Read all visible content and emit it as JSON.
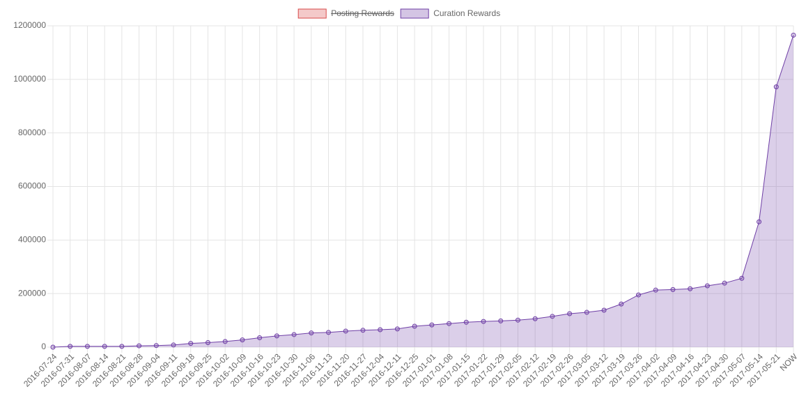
{
  "chart_data": {
    "type": "line",
    "categories": [
      "2016-07-24",
      "2016-07-31",
      "2016-08-07",
      "2016-08-14",
      "2016-08-21",
      "2016-08-28",
      "2016-09-04",
      "2016-09-11",
      "2016-09-18",
      "2016-09-25",
      "2016-10-02",
      "2016-10-09",
      "2016-10-16",
      "2016-10-23",
      "2016-10-30",
      "2016-11-06",
      "2016-11-13",
      "2016-11-20",
      "2016-11-27",
      "2016-12-04",
      "2016-12-11",
      "2016-12-25",
      "2017-01-01",
      "2017-01-08",
      "2017-01-15",
      "2017-01-22",
      "2017-01-29",
      "2017-02-05",
      "2017-02-12",
      "2017-02-19",
      "2017-02-26",
      "2017-03-05",
      "2017-03-12",
      "2017-03-19",
      "2017-03-26",
      "2017-04-02",
      "2017-04-09",
      "2017-04-16",
      "2017-04-23",
      "2017-04-30",
      "2017-05-07",
      "2017-05-14",
      "2017-05-21",
      "NOW"
    ],
    "series": [
      {
        "name": "Posting Rewards",
        "color": "#d94b4b",
        "hidden": true,
        "values": [
          null,
          null,
          null,
          null,
          null,
          null,
          null,
          null,
          null,
          null,
          null,
          null,
          null,
          null,
          null,
          null,
          null,
          null,
          null,
          null,
          null,
          null,
          null,
          null,
          null,
          null,
          null,
          null,
          null,
          null,
          null,
          null,
          null,
          null,
          null,
          null,
          null,
          null,
          null,
          null,
          null,
          null,
          null,
          null
        ]
      },
      {
        "name": "Curation Rewards",
        "color": "#6f3fa6",
        "hidden": false,
        "values": [
          0,
          3000,
          3000,
          3000,
          3000,
          5000,
          6000,
          8000,
          14000,
          17000,
          21000,
          27000,
          35000,
          42000,
          47000,
          53000,
          55000,
          60000,
          63000,
          65000,
          68000,
          78000,
          83000,
          88000,
          93000,
          96000,
          98000,
          101000,
          106000,
          115000,
          125000,
          130000,
          138000,
          161000,
          195000,
          213000,
          215000,
          218000,
          229000,
          239000,
          257000,
          468000,
          972000,
          1165000
        ]
      }
    ],
    "ylim": [
      0,
      1200000
    ],
    "yticks": [
      0,
      200000,
      400000,
      600000,
      800000,
      1000000,
      1200000
    ],
    "grid": true,
    "area": true,
    "legend": "top"
  }
}
